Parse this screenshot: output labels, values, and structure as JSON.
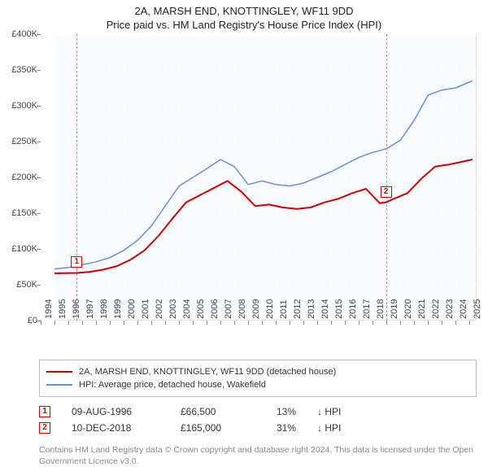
{
  "title": "2A, MARSH END, KNOTTINGLEY, WF11 9DD",
  "subtitle": "Price paid vs. HM Land Registry's House Price Index (HPI)",
  "chart": {
    "type": "line",
    "background_color": "#f8fbff",
    "grid_color": "#ffffff",
    "axis_color": "#e0e0e0",
    "text_color": "#444444",
    "fontsize": 11,
    "x_years": [
      1994,
      1995,
      1996,
      1997,
      1998,
      1999,
      2000,
      2001,
      2002,
      2003,
      2004,
      2005,
      2006,
      2007,
      2008,
      2009,
      2010,
      2011,
      2012,
      2013,
      2014,
      2015,
      2016,
      2017,
      2018,
      2019,
      2020,
      2021,
      2022,
      2023,
      2024,
      2025
    ],
    "x_min": 1994,
    "x_max": 2025.5,
    "y_min": 0,
    "y_max": 400000,
    "y_step": 50000,
    "y_prefix": "£",
    "y_suffix_k": "K",
    "plot_left_year": 1995,
    "series": [
      {
        "id": "address",
        "label": "2A, MARSH END, KNOTTINGLEY, WF11 9DD (detached house)",
        "color": "#cc0000",
        "width": 2,
        "points": [
          [
            1995.0,
            66000
          ],
          [
            1996.6,
            66500
          ],
          [
            1997.5,
            68000
          ],
          [
            1998.5,
            71000
          ],
          [
            1999.5,
            76000
          ],
          [
            2000.5,
            85000
          ],
          [
            2001.5,
            98000
          ],
          [
            2002.5,
            118000
          ],
          [
            2003.5,
            142000
          ],
          [
            2004.5,
            165000
          ],
          [
            2005.5,
            175000
          ],
          [
            2006.5,
            185000
          ],
          [
            2007.5,
            195000
          ],
          [
            2008.5,
            180000
          ],
          [
            2009.5,
            160000
          ],
          [
            2010.5,
            162000
          ],
          [
            2011.5,
            158000
          ],
          [
            2012.5,
            156000
          ],
          [
            2013.5,
            158000
          ],
          [
            2014.5,
            165000
          ],
          [
            2015.5,
            170000
          ],
          [
            2016.5,
            178000
          ],
          [
            2017.5,
            184000
          ],
          [
            2018.5,
            164000
          ],
          [
            2018.95,
            165000
          ],
          [
            2019.5,
            170000
          ],
          [
            2020.5,
            178000
          ],
          [
            2021.5,
            198000
          ],
          [
            2022.5,
            215000
          ],
          [
            2023.5,
            218000
          ],
          [
            2024.5,
            222000
          ],
          [
            2025.2,
            225000
          ]
        ]
      },
      {
        "id": "hpi",
        "label": "HPI: Average price, detached house, Wakefield",
        "color": "#6a8fd8",
        "width": 1.5,
        "points": [
          [
            1995.0,
            72000
          ],
          [
            1996.0,
            74000
          ],
          [
            1997.0,
            78000
          ],
          [
            1998.0,
            82000
          ],
          [
            1999.0,
            88000
          ],
          [
            2000.0,
            98000
          ],
          [
            2001.0,
            112000
          ],
          [
            2002.0,
            132000
          ],
          [
            2003.0,
            160000
          ],
          [
            2004.0,
            188000
          ],
          [
            2005.0,
            200000
          ],
          [
            2006.0,
            212000
          ],
          [
            2007.0,
            225000
          ],
          [
            2008.0,
            215000
          ],
          [
            2009.0,
            190000
          ],
          [
            2010.0,
            195000
          ],
          [
            2011.0,
            190000
          ],
          [
            2012.0,
            188000
          ],
          [
            2013.0,
            192000
          ],
          [
            2014.0,
            200000
          ],
          [
            2015.0,
            208000
          ],
          [
            2016.0,
            218000
          ],
          [
            2017.0,
            228000
          ],
          [
            2018.0,
            235000
          ],
          [
            2019.0,
            240000
          ],
          [
            2020.0,
            252000
          ],
          [
            2021.0,
            280000
          ],
          [
            2022.0,
            315000
          ],
          [
            2023.0,
            322000
          ],
          [
            2024.0,
            325000
          ],
          [
            2025.2,
            335000
          ]
        ]
      }
    ],
    "markers": [
      {
        "n": 1,
        "year": 1996.6,
        "y": 66500
      },
      {
        "n": 2,
        "year": 2018.95,
        "y": 165000
      }
    ]
  },
  "legend": {
    "rows": [
      {
        "color": "#cc0000",
        "label": "2A, MARSH END, KNOTTINGLEY, WF11 9DD (detached house)"
      },
      {
        "color": "#6a8fd8",
        "label": "HPI: Average price, detached house, Wakefield"
      }
    ]
  },
  "transactions": [
    {
      "n": "1",
      "date": "09-AUG-1996",
      "price": "£66,500",
      "pct": "13%",
      "arrow": "↓",
      "rel": "HPI"
    },
    {
      "n": "2",
      "date": "10-DEC-2018",
      "price": "£165,000",
      "pct": "31%",
      "arrow": "↓",
      "rel": "HPI"
    }
  ],
  "copyright": "Contains HM Land Registry data © Crown copyright and database right 2024. This data is licensed under the Open Government Licence v3.0."
}
